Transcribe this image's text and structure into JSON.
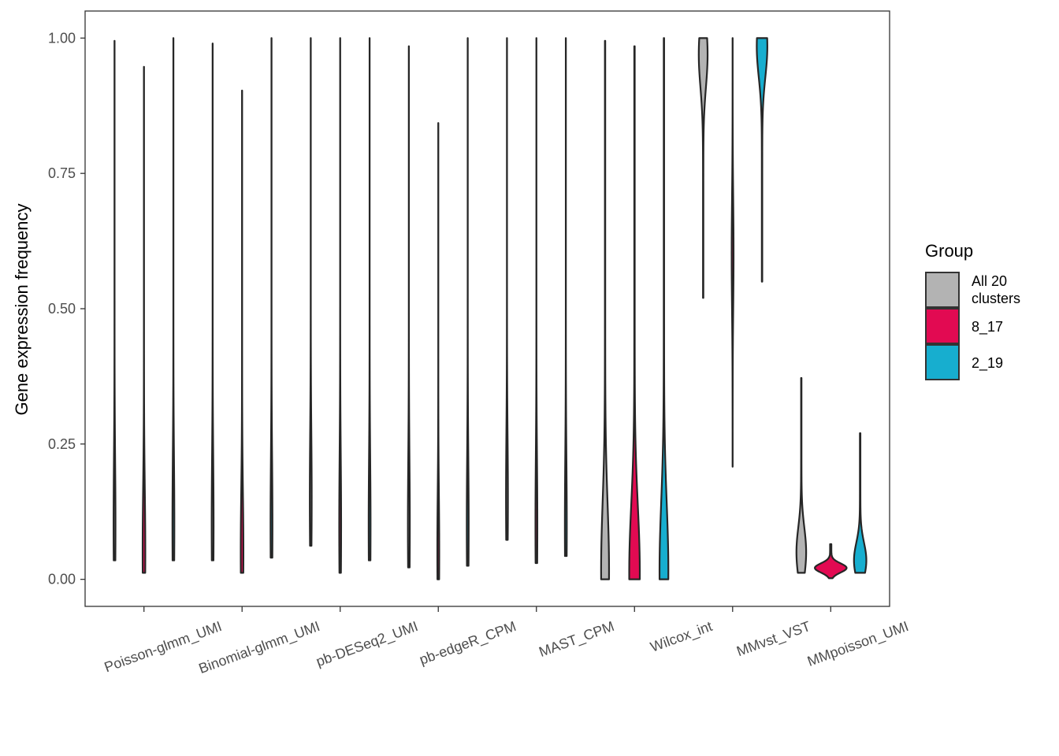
{
  "chart_data": {
    "type": "violin",
    "title": "",
    "xlabel": "",
    "ylabel": "Gene expression frequency",
    "ylim": [
      -0.05,
      1.05
    ],
    "yticks": [
      0.0,
      0.25,
      0.5,
      0.75,
      1.0
    ],
    "ytick_labels": [
      "0.00",
      "0.25",
      "0.50",
      "0.75",
      "1.00"
    ],
    "categories": [
      "Poisson-glmm_UMI",
      "Binomial-glmm_UMI",
      "pb-DESeq2_UMI",
      "pb-edgeR_CPM",
      "MAST_CPM",
      "Wilcox_int",
      "MMvst_VST",
      "MMpoisson_UMI"
    ],
    "grid": false,
    "legend": {
      "title": "Group",
      "position": "right",
      "entries": [
        {
          "label_lines": [
            "All 20",
            "clusters"
          ],
          "color": "#B3B3B3"
        },
        {
          "label_lines": [
            "8_17"
          ],
          "color": "#E20A52"
        },
        {
          "label_lines": [
            "2_19"
          ],
          "color": "#17AECF"
        }
      ]
    },
    "series": [
      {
        "name": "All 20 clusters",
        "color": "#B3B3B3",
        "values": [
          {
            "min": 0.035,
            "max": 0.995,
            "mode": 0.1,
            "width": 0.006
          },
          {
            "min": 0.035,
            "max": 0.99,
            "mode": 0.1,
            "width": 0.006
          },
          {
            "min": 0.062,
            "max": 1.0,
            "mode": 0.15,
            "width": 0.005
          },
          {
            "min": 0.022,
            "max": 0.985,
            "mode": 0.1,
            "width": 0.005
          },
          {
            "min": 0.073,
            "max": 1.0,
            "mode": 0.15,
            "width": 0.005
          },
          {
            "min": 0.0,
            "max": 0.995,
            "mode": 0.015,
            "width": 0.09
          },
          {
            "min": 0.52,
            "max": 1.0,
            "mode": 0.97,
            "width": 0.1
          },
          {
            "min": 0.012,
            "max": 0.372,
            "mode": 0.05,
            "width": 0.11
          }
        ]
      },
      {
        "name": "8_17",
        "color": "#E20A52",
        "values": [
          {
            "min": 0.012,
            "max": 0.947,
            "mode": 0.05,
            "width": 0.03
          },
          {
            "min": 0.012,
            "max": 0.903,
            "mode": 0.05,
            "width": 0.03
          },
          {
            "min": 0.012,
            "max": 1.0,
            "mode": 0.1,
            "width": 0.005
          },
          {
            "min": 0.0,
            "max": 0.843,
            "mode": 0.05,
            "width": 0.005
          },
          {
            "min": 0.03,
            "max": 1.0,
            "mode": 0.1,
            "width": 0.005
          },
          {
            "min": 0.0,
            "max": 0.985,
            "mode": 0.012,
            "width": 0.12
          },
          {
            "min": 0.208,
            "max": 1.0,
            "mode": 0.6,
            "width": 0.005
          },
          {
            "min": 0.002,
            "max": 0.065,
            "mode": 0.021,
            "width": 0.36
          }
        ]
      },
      {
        "name": "2_19",
        "color": "#17AECF",
        "values": [
          {
            "min": 0.035,
            "max": 1.0,
            "mode": 0.1,
            "width": 0.006
          },
          {
            "min": 0.04,
            "max": 1.0,
            "mode": 0.1,
            "width": 0.006
          },
          {
            "min": 0.035,
            "max": 1.0,
            "mode": 0.1,
            "width": 0.005
          },
          {
            "min": 0.025,
            "max": 1.0,
            "mode": 0.1,
            "width": 0.005
          },
          {
            "min": 0.043,
            "max": 1.0,
            "mode": 0.1,
            "width": 0.005
          },
          {
            "min": 0.0,
            "max": 1.0,
            "mode": 0.015,
            "width": 0.1
          },
          {
            "min": 0.55,
            "max": 1.0,
            "mode": 0.985,
            "width": 0.12
          },
          {
            "min": 0.012,
            "max": 0.27,
            "mode": 0.035,
            "width": 0.14
          }
        ]
      }
    ]
  }
}
